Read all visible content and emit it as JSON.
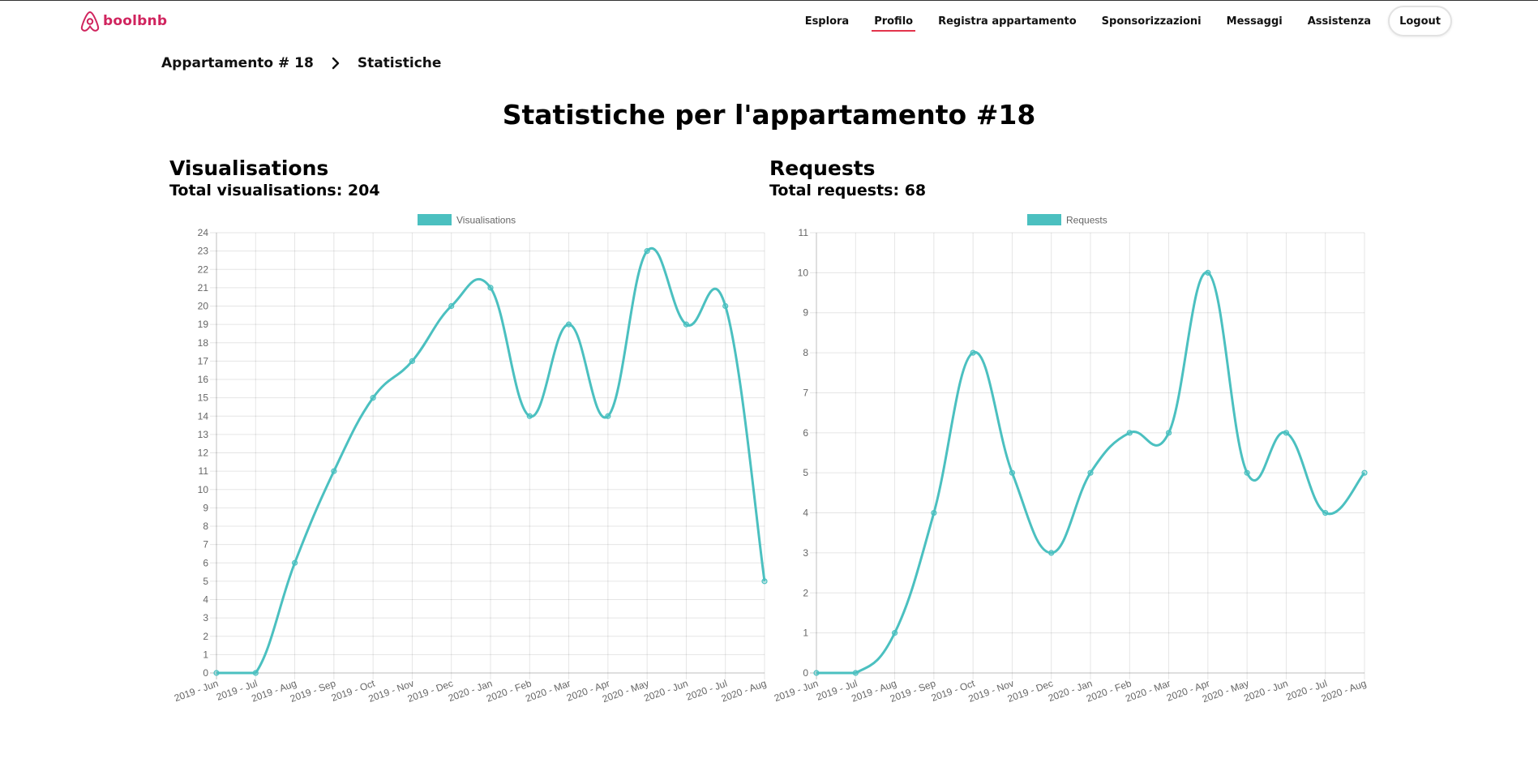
{
  "app": {
    "logo_text": "boolbnb",
    "brand_color": "#d0245e",
    "accent_color": "#e3344c"
  },
  "nav": {
    "items": [
      {
        "label": "Esplora",
        "active": false
      },
      {
        "label": "Profilo",
        "active": true
      },
      {
        "label": "Registra appartamento",
        "active": false
      },
      {
        "label": "Sponsorizzazioni",
        "active": false
      },
      {
        "label": "Messaggi",
        "active": false
      },
      {
        "label": "Assistenza",
        "active": false
      }
    ],
    "logout_label": "Logout"
  },
  "breadcrumb": {
    "parent": "Appartamento # 18",
    "separator_icon": "chevron-right-icon",
    "current": "Statistiche"
  },
  "page_title": "Statistiche per l'appartamento #18",
  "panels": {
    "visualisations": {
      "title": "Visualisations",
      "total_text": "Total visualisations: 204"
    },
    "requests": {
      "title": "Requests",
      "total_text": "Total requests: 68"
    }
  },
  "chart_data": [
    {
      "type": "line",
      "title": "",
      "xlabel": "",
      "ylabel": "",
      "legend_position": "top",
      "grid": true,
      "categories": [
        "2019 - Jun",
        "2019 - Jul",
        "2019 - Aug",
        "2019 - Sep",
        "2019 - Oct",
        "2019 - Nov",
        "2019 - Dec",
        "2020 - Jan",
        "2020 - Feb",
        "2020 - Mar",
        "2020 - Apr",
        "2020 - May",
        "2020 - Jun",
        "2020 - Jul",
        "2020 - Aug"
      ],
      "ylim": [
        0,
        24
      ],
      "ytick_step": 1,
      "series": [
        {
          "name": "Visualisations",
          "color": "#4bc0c0",
          "values": [
            0,
            0,
            6,
            11,
            15,
            17,
            20,
            21,
            14,
            19,
            14,
            23,
            19,
            20,
            5
          ]
        }
      ]
    },
    {
      "type": "line",
      "title": "",
      "xlabel": "",
      "ylabel": "",
      "legend_position": "top",
      "grid": true,
      "categories": [
        "2019 - Jun",
        "2019 - Jul",
        "2019 - Aug",
        "2019 - Sep",
        "2019 - Oct",
        "2019 - Nov",
        "2019 - Dec",
        "2020 - Jan",
        "2020 - Feb",
        "2020 - Mar",
        "2020 - Apr",
        "2020 - May",
        "2020 - Jun",
        "2020 - Jul",
        "2020 - Aug"
      ],
      "ylim": [
        0,
        11
      ],
      "ytick_step": 1,
      "series": [
        {
          "name": "Requests",
          "color": "#4bc0c0",
          "values": [
            0,
            0,
            1,
            4,
            8,
            5,
            3,
            5,
            6,
            6,
            10,
            5,
            6,
            4,
            5
          ]
        }
      ]
    }
  ]
}
